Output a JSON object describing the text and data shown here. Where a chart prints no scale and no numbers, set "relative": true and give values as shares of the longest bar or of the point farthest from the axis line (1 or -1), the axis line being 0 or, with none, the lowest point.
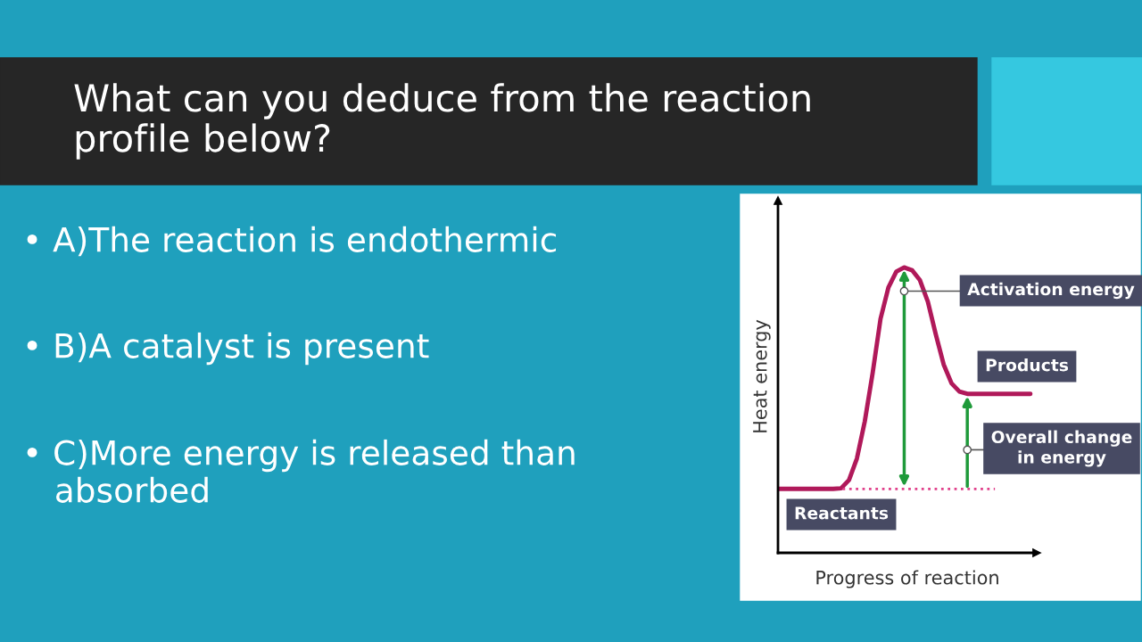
{
  "chart_data": {
    "type": "line",
    "relative": true,
    "title": "What can you deduce from the reaction\nprofile below?",
    "xlabel": "Progress of reaction",
    "ylabel": "Heat energy",
    "categories": [
      null,
      null,
      null,
      null,
      null,
      null,
      null,
      null,
      null,
      null,
      null,
      null,
      null,
      null,
      null,
      null,
      null,
      null,
      null,
      null,
      null,
      null,
      null,
      null,
      null,
      null,
      null,
      null,
      null,
      null,
      null,
      null,
      null
    ],
    "series": [
      {
        "color": "#b0195a",
        "values": [
          0.224,
          0.224,
          0.224,
          0.224,
          0.224,
          0.224,
          0.224,
          0.224,
          0.226,
          0.255,
          0.33,
          0.46,
          0.63,
          0.82,
          0.93,
          0.985,
          1.0,
          0.99,
          0.955,
          0.88,
          0.766,
          0.66,
          0.594,
          0.565,
          0.557,
          0.557,
          0.557,
          0.557,
          0.557,
          0.557,
          0.557,
          0.557,
          0.557
        ]
      }
    ],
    "ref_lines": [
      {
        "axis": "y",
        "value": 0.224,
        "color": "#e0408a",
        "line_style": "dotted"
      }
    ],
    "marker": "none",
    "line_style": "solid",
    "legend": false,
    "annotations": [
      "• A)The reaction is endothermic",
      "• B)A catalyst is present",
      "• C)More energy is released than\n   absorbed",
      "Activation energy",
      "Products",
      "Overall change\nin energy",
      "Reactants"
    ]
  }
}
